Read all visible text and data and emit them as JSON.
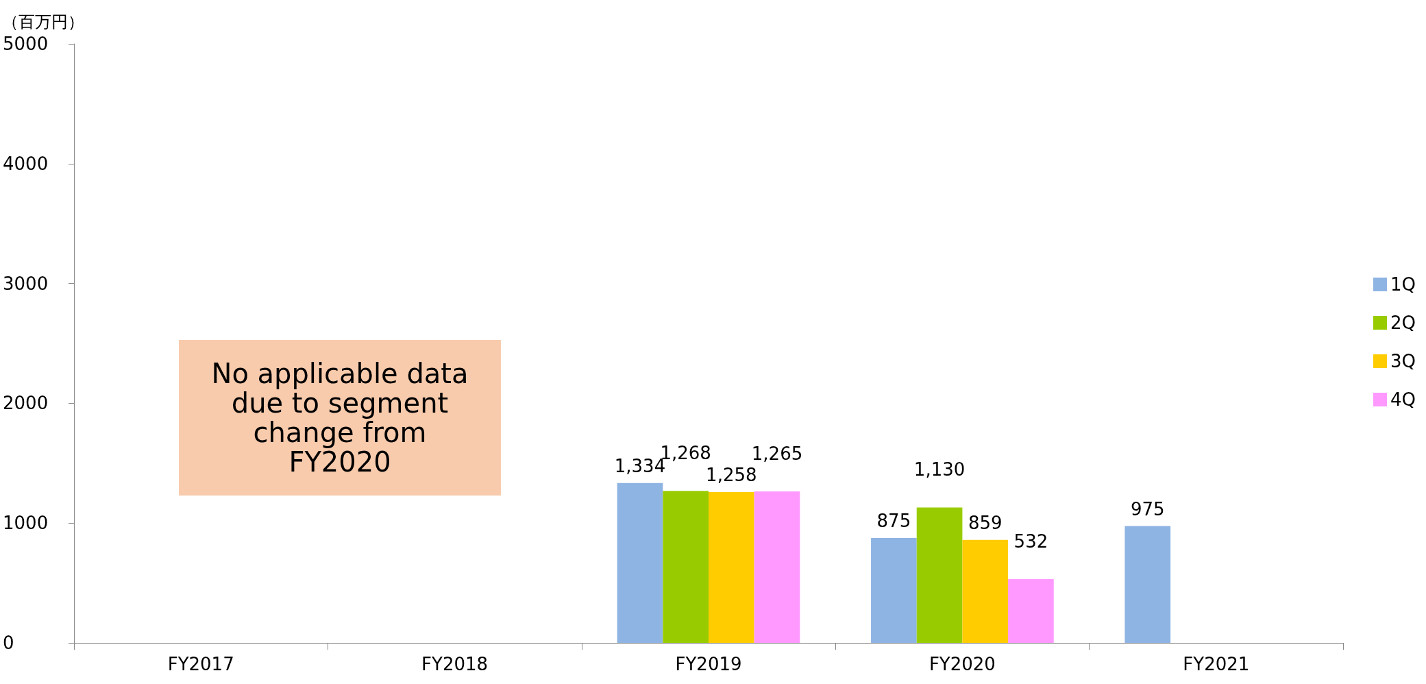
{
  "chart_data": {
    "type": "bar",
    "ylabel": "（百万円）",
    "categories": [
      "FY2017",
      "FY2018",
      "FY2019",
      "FY2020",
      "FY2021"
    ],
    "series": [
      {
        "name": "1Q",
        "color": "#8eb4e3",
        "values": [
          null,
          null,
          1334,
          875,
          975
        ],
        "value_labels": [
          null,
          null,
          "1,334",
          "875",
          "975"
        ]
      },
      {
        "name": "2Q",
        "color": "#99cc00",
        "values": [
          null,
          null,
          1268,
          1130,
          null
        ],
        "value_labels": [
          null,
          null,
          "1,268",
          "1,130",
          null
        ]
      },
      {
        "name": "3Q",
        "color": "#ffcc00",
        "values": [
          null,
          null,
          1258,
          859,
          null
        ],
        "value_labels": [
          null,
          null,
          "1,258",
          "859",
          null
        ]
      },
      {
        "name": "4Q",
        "color": "#ff99ff",
        "values": [
          null,
          null,
          1265,
          532,
          null
        ],
        "value_labels": [
          null,
          null,
          "1,265",
          "532",
          null
        ]
      }
    ],
    "ylim": [
      0,
      5000
    ],
    "yticks": [
      0,
      1000,
      2000,
      3000,
      4000,
      5000
    ],
    "grid": false,
    "legend": "right",
    "annotations": [
      "No applicable data due to segment change from FY2020"
    ]
  }
}
